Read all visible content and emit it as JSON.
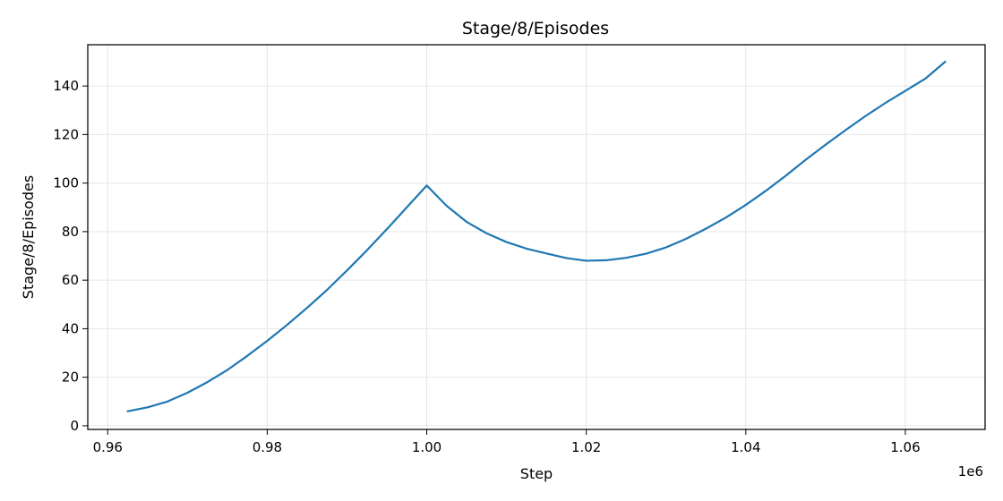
{
  "chart_data": {
    "type": "line",
    "title": "Stage/8/Episodes",
    "xlabel": "Step",
    "ylabel": "Stage/8/Episodes",
    "x_offset_label": "1e6",
    "xlim": [
      0.9575,
      1.07
    ],
    "ylim": [
      -1.5,
      157
    ],
    "grid": true,
    "xticks": [
      0.96,
      0.98,
      1.0,
      1.02,
      1.04,
      1.06
    ],
    "xtick_labels": [
      "0.96",
      "0.98",
      "1.00",
      "1.02",
      "1.04",
      "1.06"
    ],
    "yticks": [
      0,
      20,
      40,
      60,
      80,
      100,
      120,
      140
    ],
    "ytick_labels": [
      "0",
      "20",
      "40",
      "60",
      "80",
      "100",
      "120",
      "140"
    ],
    "series": [
      {
        "color": "#1f77b4",
        "x": [
          0.9625,
          0.965,
          0.9675,
          0.97,
          0.9725,
          0.975,
          0.9775,
          0.98,
          0.9825,
          0.985,
          0.9875,
          0.99,
          0.9925,
          0.995,
          0.9975,
          1.0,
          1.0025,
          1.005,
          1.0075,
          1.01,
          1.0125,
          1.015,
          1.0175,
          1.02,
          1.0225,
          1.025,
          1.0275,
          1.03,
          1.0325,
          1.035,
          1.0375,
          1.04,
          1.0425,
          1.045,
          1.0475,
          1.05,
          1.0525,
          1.055,
          1.0575,
          1.06,
          1.0625,
          1.065
        ],
        "y": [
          6,
          7.6,
          10,
          13.6,
          18,
          23,
          28.8,
          35,
          41.6,
          48.6,
          56,
          64,
          72.3,
          81,
          90,
          99,
          90.6,
          84,
          79.3,
          75.7,
          73,
          71,
          69.1,
          68,
          68.2,
          69.2,
          70.9,
          73.5,
          77,
          81.2,
          85.8,
          91,
          96.8,
          103,
          109.6,
          115.8,
          121.8,
          127.6,
          133,
          138,
          143,
          150
        ]
      }
    ]
  }
}
